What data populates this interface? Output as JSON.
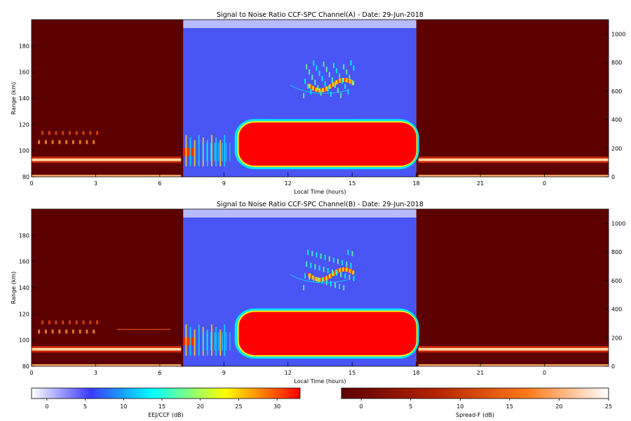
{
  "chart_data": [
    {
      "type": "heatmap",
      "title": "Signal to Noise Ratio CCF-SPC Channel(A) - Date: 29-Jun-2018",
      "xlabel": "Local Time (hours)",
      "ylabel": "Range (km)",
      "xlim": [
        0,
        27
      ],
      "x_ticks": [
        "0",
        "3",
        "6",
        "9",
        "12",
        "15",
        "18",
        "21",
        "0"
      ],
      "ylim": [
        80,
        200
      ],
      "y_ticks": [
        "80",
        "100",
        "120",
        "140",
        "160",
        "180"
      ],
      "right_ylim": [
        0,
        1100
      ],
      "right_y_ticks": [
        "0",
        "200",
        "400",
        "600",
        "800",
        "1000"
      ],
      "night_windows": [
        [
          0,
          7.1
        ],
        [
          18,
          27
        ]
      ],
      "day_window": [
        7.1,
        18
      ],
      "features": {
        "electrojet_layer_km": [
          88,
          122
        ],
        "electrojet_peak_snr_db": 30,
        "upper_echoes_km": [
          142,
          168
        ],
        "spread_f_base_km": 93
      }
    },
    {
      "type": "heatmap",
      "title": "Signal to Noise Ratio CCF-SPC Channel(B) - Date: 29-Jun-2018",
      "xlabel": "Local Time (hours)",
      "ylabel": "Range (km)",
      "xlim": [
        0,
        27
      ],
      "x_ticks": [
        "0",
        "3",
        "6",
        "9",
        "12",
        "15",
        "18",
        "21",
        "0"
      ],
      "ylim": [
        80,
        200
      ],
      "y_ticks": [
        "80",
        "100",
        "120",
        "140",
        "160",
        "180"
      ],
      "right_ylim": [
        0,
        1100
      ],
      "right_y_ticks": [
        "0",
        "200",
        "400",
        "600",
        "800",
        "1000"
      ],
      "night_windows": [
        [
          0,
          7.1
        ],
        [
          18,
          27
        ]
      ],
      "day_window": [
        7.1,
        18
      ],
      "features": {
        "electrojet_layer_km": [
          88,
          122
        ],
        "electrojet_peak_snr_db": 30,
        "upper_echoes_km": [
          140,
          168
        ],
        "spread_f_base_km": 93
      }
    }
  ],
  "colorbars": [
    {
      "label": "EEJ/CCF (dB)",
      "range": [
        -2,
        33
      ],
      "ticks": [
        "0",
        "5",
        "10",
        "15",
        "20",
        "25",
        "30"
      ],
      "colors": [
        "#ffffff",
        "#3a3aff",
        "#00ffff",
        "#ffff00",
        "#ff0000"
      ]
    },
    {
      "label": "Spread-F (dB)",
      "range": [
        -2,
        25
      ],
      "ticks": [
        "0",
        "5",
        "10",
        "15",
        "20",
        "25"
      ],
      "colors": [
        "#5c0000",
        "#b22200",
        "#ff7a1a",
        "#ffffff"
      ]
    }
  ]
}
